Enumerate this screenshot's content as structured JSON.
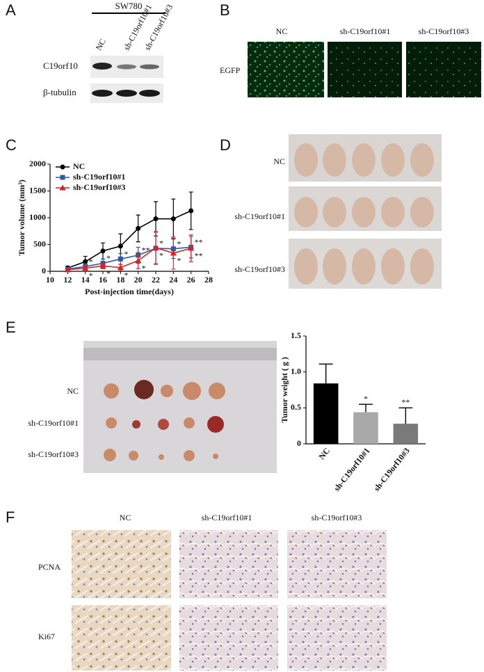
{
  "panels": {
    "a": {
      "label": "A",
      "cell_line": "SW780",
      "lanes": [
        "NC",
        "sh-C19orf10#1",
        "sh-C19orf10#3"
      ],
      "rows": [
        "C19orf10",
        "β-tubulin"
      ]
    },
    "b": {
      "label": "B",
      "columns": [
        "NC",
        "sh-C19orf10#1",
        "sh-C19orf10#3"
      ],
      "row": "EGFP"
    },
    "c": {
      "label": "C"
    },
    "d": {
      "label": "D",
      "rows": [
        "NC",
        "sh-C19orf10#1",
        "sh-C19orf10#3"
      ]
    },
    "e": {
      "label": "E",
      "rows": [
        "NC",
        "sh-C19orf10#1",
        "sh-C19orf10#3"
      ]
    },
    "f": {
      "label": "F",
      "columns": [
        "NC",
        "sh-C19orf10#1",
        "sh-C19orf10#3"
      ],
      "rows": [
        "PCNA",
        "Ki67"
      ]
    }
  },
  "chart_data": [
    {
      "type": "line",
      "x_label": "Post-injection time(days)",
      "y_label": "Tumor volume (mm³)",
      "x": [
        12,
        14,
        16,
        18,
        20,
        22,
        24,
        26
      ],
      "xlim": [
        10,
        28
      ],
      "xticks": [
        10,
        12,
        14,
        16,
        18,
        20,
        22,
        24,
        26,
        28
      ],
      "ylim": [
        0,
        2000
      ],
      "yticks": [
        0,
        500,
        1000,
        1500,
        2000
      ],
      "series": [
        {
          "name": "NC",
          "color": "#000000",
          "marker": "circle",
          "values": [
            60,
            180,
            380,
            470,
            800,
            980,
            980,
            1130
          ],
          "errors": [
            40,
            100,
            150,
            230,
            250,
            320,
            370,
            350
          ]
        },
        {
          "name": "sh-C19orf10#1",
          "color": "#2b5aa8",
          "marker": "square",
          "values": [
            40,
            90,
            150,
            230,
            300,
            430,
            420,
            450
          ],
          "errors": [
            20,
            50,
            80,
            100,
            150,
            300,
            180,
            200
          ],
          "significance": [
            null,
            "*",
            "*",
            "*",
            "**",
            "*",
            "*",
            "**"
          ]
        },
        {
          "name": "sh-C19orf10#3",
          "color": "#e02020",
          "marker": "triangle",
          "values": [
            30,
            60,
            100,
            70,
            200,
            440,
            340,
            430
          ],
          "errors": [
            20,
            40,
            50,
            60,
            150,
            300,
            300,
            250
          ],
          "significance": [
            null,
            "*",
            "*",
            "*",
            "*",
            "*",
            "*",
            "**"
          ]
        }
      ]
    },
    {
      "type": "bar",
      "y_label": "Tumor weight ( g )",
      "categories": [
        "NC",
        "sh-C19orf10#1",
        "sh-C19orf10#3"
      ],
      "values": [
        0.84,
        0.44,
        0.28
      ],
      "errors": [
        0.27,
        0.11,
        0.22
      ],
      "colors": [
        "#000000",
        "#a9a9a9",
        "#7a7a7a"
      ],
      "significance": [
        null,
        "*",
        "**"
      ],
      "ylim": [
        0,
        1.5
      ],
      "yticks": [
        0,
        {
          "value": 0.5,
          "label": "0.5"
        },
        {
          "value": 1,
          "label": "1.0"
        },
        1.5
      ]
    }
  ]
}
